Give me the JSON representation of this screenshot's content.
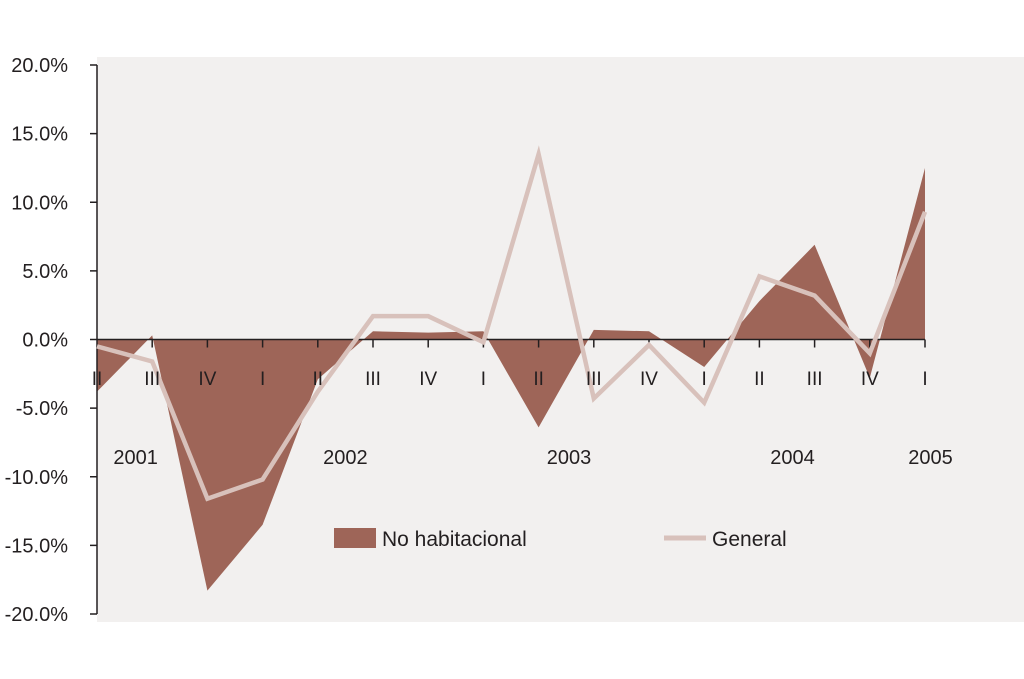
{
  "chart_data": {
    "type": "area",
    "title": "",
    "xlabel": "",
    "ylabel": "",
    "ylim": [
      -20,
      20
    ],
    "yticks": [
      20,
      15,
      10,
      5,
      0,
      -5,
      -10,
      -15,
      -20
    ],
    "ytick_labels": [
      "20.0%",
      "15.0%",
      "10.0%",
      "5.0%",
      "0.0%",
      "-5.0%",
      "-10.0%",
      "-15.0%",
      "-20.0%"
    ],
    "categories": [
      "II",
      "III",
      "IV",
      "I",
      "II",
      "III",
      "IV",
      "I",
      "II",
      "III",
      "IV",
      "I",
      "II",
      "III",
      "IV",
      "I"
    ],
    "years": [
      {
        "label": "2001",
        "at_index": 0.7
      },
      {
        "label": "2002",
        "at_index": 4.5
      },
      {
        "label": "2003",
        "at_index": 8.55
      },
      {
        "label": "2004",
        "at_index": 12.6
      },
      {
        "label": "2005",
        "at_index": 15.1
      }
    ],
    "series": [
      {
        "name": "No habitacional",
        "kind": "area",
        "color": "#9e6558",
        "values": [
          -3.8,
          0.3,
          -18.3,
          -13.5,
          -2.9,
          0.6,
          0.5,
          0.6,
          -6.4,
          0.7,
          0.6,
          -2.0,
          2.8,
          6.9,
          -2.8,
          12.5
        ]
      },
      {
        "name": "General",
        "kind": "line",
        "color": "#d8c1bb",
        "values": [
          -0.5,
          -1.6,
          -11.6,
          -10.2,
          -3.8,
          1.7,
          1.7,
          -0.2,
          13.5,
          -4.3,
          -0.4,
          -4.6,
          4.6,
          3.2,
          -1.0,
          9.3
        ]
      }
    ],
    "grid": false,
    "legend": "bottom-center",
    "background": "#f2f0ef",
    "axis_color": "#231f20"
  }
}
